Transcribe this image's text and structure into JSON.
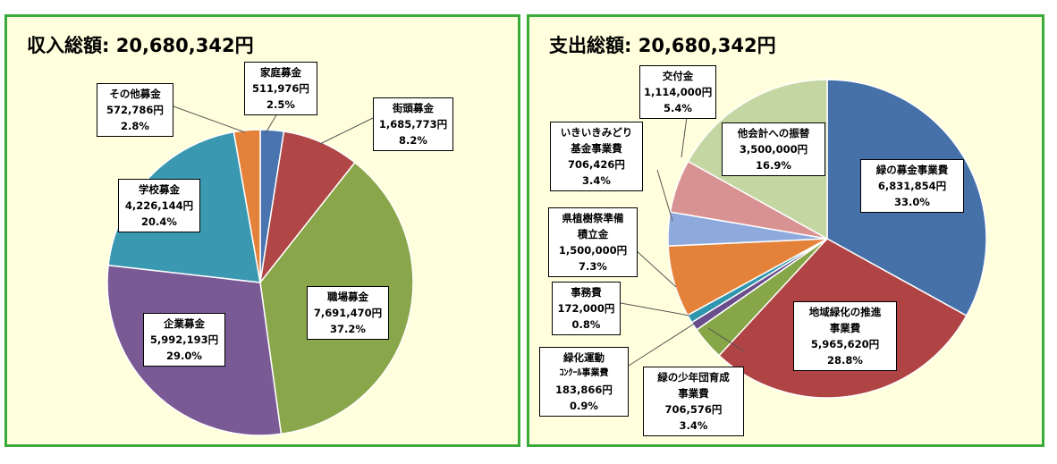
{
  "chart_data": [
    {
      "type": "pie",
      "title_label": "収入総額:",
      "title_value": "20,680,342円",
      "colors": {
        "職場募金": "#8aa64a",
        "企業募金": "#7a5a94",
        "学校募金": "#3a98b0",
        "その他募金": "#e4823a",
        "家庭募金": "#4a74b0",
        "街頭募金": "#b04646"
      },
      "slices": [
        {
          "name": "家庭募金",
          "value_text": "511,976円",
          "value": 511976,
          "percent": "2.5%"
        },
        {
          "name": "街頭募金",
          "value_text": "1,685,773円",
          "value": 1685773,
          "percent": "8.2%"
        },
        {
          "name": "職場募金",
          "value_text": "7,691,470円",
          "value": 7691470,
          "percent": "37.2%"
        },
        {
          "name": "企業募金",
          "value_text": "5,992,193円",
          "value": 5992193,
          "percent": "29.0%"
        },
        {
          "name": "学校募金",
          "value_text": "4,226,144円",
          "value": 4226144,
          "percent": "20.4%"
        },
        {
          "name": "その他募金",
          "value_text": "572,786円",
          "value": 572786,
          "percent": "2.8%"
        }
      ]
    },
    {
      "type": "pie",
      "title_label": "支出総額:",
      "title_value": "20,680,342円",
      "colors": {
        "緑の募金事業費": "#4570a8",
        "地域緑化の推進事業費": "#b04444",
        "緑の少年団育成事業費": "#86a648",
        "緑化運動コンクール事業費": "#6a4e8c",
        "事務費": "#2e96ae",
        "県植樹祭準備積立金": "#e4823a",
        "いきいきみどり基金事業費": "#8eaadc",
        "交付金": "#d99292",
        "他会計への振替": "#c4d6a2"
      },
      "slices": [
        {
          "name": "緑の募金事業費",
          "value_text": "6,831,854円",
          "value": 6831854,
          "percent": "33.0%"
        },
        {
          "name": "地域緑化の推進事業費",
          "name_lines": [
            "地域緑化の推進",
            "事業費"
          ],
          "value_text": "5,965,620円",
          "value": 5965620,
          "percent": "28.8%"
        },
        {
          "name": "緑の少年団育成事業費",
          "name_lines": [
            "緑の少年団育成",
            "事業費"
          ],
          "value_text": "706,576円",
          "value": 706576,
          "percent": "3.4%"
        },
        {
          "name": "緑化運動コンクール事業費",
          "name_lines": [
            "緑化運動",
            "ｺﾝｸｰﾙ事業費"
          ],
          "value_text": "183,866円",
          "value": 183866,
          "percent": "0.9%"
        },
        {
          "name": "事務費",
          "value_text": "172,000円",
          "value": 172000,
          "percent": "0.8%"
        },
        {
          "name": "県植樹祭準備積立金",
          "name_lines": [
            "県植樹祭準備",
            "積立金"
          ],
          "value_text": "1,500,000円",
          "value": 1500000,
          "percent": "7.3%"
        },
        {
          "name": "いきいきみどり基金事業費",
          "name_lines": [
            "いきいきみどり",
            "基金事業費"
          ],
          "value_text": "706,426円",
          "value": 706426,
          "percent": "3.4%"
        },
        {
          "name": "交付金",
          "value_text": "1,114,000円",
          "value": 1114000,
          "percent": "5.4%"
        },
        {
          "name": "他会計への振替",
          "value_text": "3,500,000円",
          "value": 3500000,
          "percent": "16.9%"
        }
      ]
    }
  ]
}
